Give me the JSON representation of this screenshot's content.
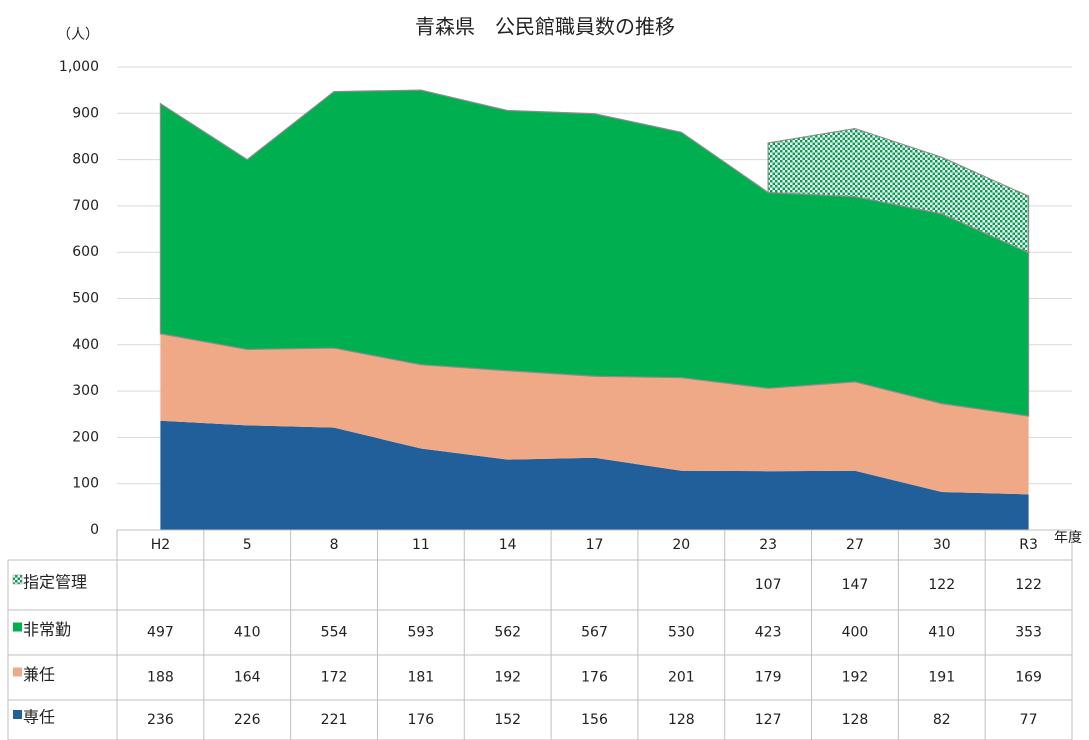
{
  "chart_data": {
    "type": "stacked_area",
    "title": "青森県　公民館職員数の推移",
    "y_label": "（人）",
    "x_label": "年度",
    "categories": [
      "H2",
      "5",
      "8",
      "11",
      "14",
      "17",
      "20",
      "23",
      "27",
      "30",
      "R3"
    ],
    "series": [
      {
        "name": "指定管理",
        "color": "#00b050",
        "pattern": "dots",
        "values": [
          null,
          null,
          null,
          null,
          null,
          null,
          null,
          107,
          147,
          122,
          122
        ]
      },
      {
        "name": "非常勤",
        "color": "#00b050",
        "values": [
          497,
          410,
          554,
          593,
          562,
          567,
          530,
          423,
          400,
          410,
          353
        ]
      },
      {
        "name": "兼任",
        "color": "#f0a986",
        "values": [
          188,
          164,
          172,
          181,
          192,
          176,
          201,
          179,
          192,
          191,
          169
        ]
      },
      {
        "name": "専任",
        "color": "#215f9a",
        "values": [
          236,
          226,
          221,
          176,
          152,
          156,
          128,
          127,
          128,
          82,
          77
        ]
      }
    ],
    "ylim": [
      0,
      1000
    ],
    "yticks": [
      0,
      100,
      200,
      300,
      400,
      500,
      600,
      700,
      800,
      900,
      {
        "value": 1000,
        "label": "1,000"
      }
    ],
    "grid": true,
    "data_table": true
  }
}
